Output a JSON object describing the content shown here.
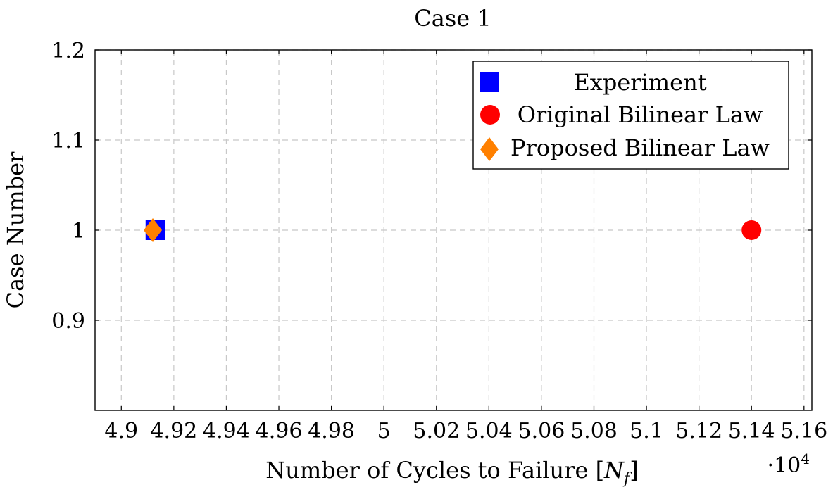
{
  "chart_data": {
    "type": "scatter",
    "title": "Case 1",
    "xlabel": "Number of Cycles to Failure [N_f]",
    "xlabel_main": "Number of Cycles to Failure [",
    "xlabel_sym": "N",
    "xlabel_sub": "f",
    "xlabel_close": "]",
    "ylabel": "Case Number",
    "x_scale_base": "·10",
    "x_scale_exp": "4",
    "xlim": [
      4.89,
      5.163
    ],
    "ylim": [
      0.8,
      1.2
    ],
    "x_ticks": [
      4.9,
      4.92,
      4.94,
      4.96,
      4.98,
      5,
      5.02,
      5.04,
      5.06,
      5.08,
      5.1,
      5.12,
      5.14,
      5.16
    ],
    "x_tick_labels": [
      "4.9",
      "4.92",
      "4.94",
      "4.96",
      "4.98",
      "5",
      "5.02",
      "5.04",
      "5.06",
      "5.08",
      "5.1",
      "5.12",
      "5.14",
      "5.16"
    ],
    "y_ticks": [
      0.9,
      1.0,
      1.1,
      1.2
    ],
    "y_tick_labels": [
      "0.9",
      "1",
      "1.1",
      "1.2"
    ],
    "grid": true,
    "legend_position": "top-right",
    "series": [
      {
        "name": "Experiment",
        "marker": "square",
        "color": "#0000ff",
        "points": [
          {
            "x": 4.913,
            "y": 1
          }
        ]
      },
      {
        "name": "Original Bilinear Law",
        "marker": "circle",
        "color": "#ff0000",
        "points": [
          {
            "x": 5.14,
            "y": 1
          }
        ]
      },
      {
        "name": "Proposed Bilinear Law",
        "marker": "diamond",
        "color": "#ff8000",
        "points": [
          {
            "x": 4.912,
            "y": 1
          }
        ]
      }
    ]
  }
}
